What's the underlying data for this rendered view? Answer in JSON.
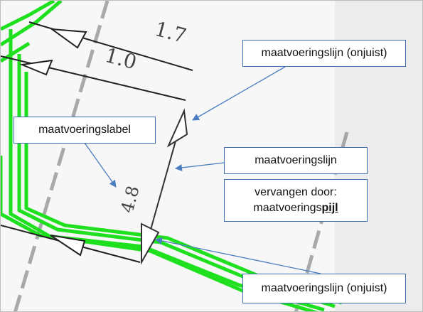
{
  "dimension_labels": {
    "top": "1.7",
    "second": "1.0",
    "vertical": "4.8"
  },
  "callouts": {
    "incorrect_top": "maatvoeringslijn (onjuist)",
    "label": "maatvoeringslabel",
    "line": "maatvoeringslijn",
    "replace_line1": "vervangen door:",
    "replace_prefix": "maatvoerings",
    "replace_emph": "pijl",
    "incorrect_bottom": "maatvoeringslijn (onjuist)"
  },
  "colors": {
    "green_lines": "#1fe01f",
    "callout_border": "#3f6fb1",
    "arrow": "#4a7cc0",
    "dim_line": "#333333",
    "dashed_lines": "#8f8f8f",
    "right_panel": "#f2f2f2"
  }
}
